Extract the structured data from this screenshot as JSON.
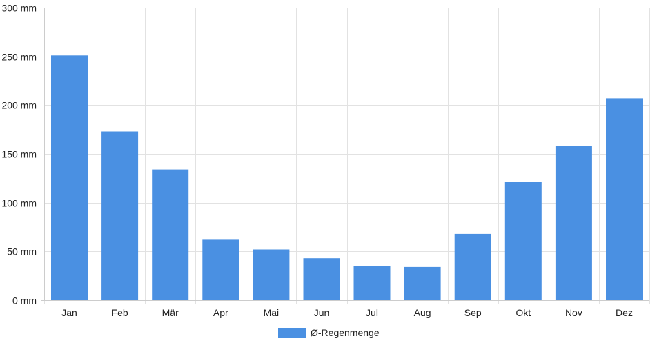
{
  "chart_data": {
    "type": "bar",
    "categories": [
      "Jan",
      "Feb",
      "Mär",
      "Apr",
      "Mai",
      "Jun",
      "Jul",
      "Aug",
      "Sep",
      "Okt",
      "Nov",
      "Dez"
    ],
    "series": [
      {
        "name": "Ø-Regenmenge",
        "color": "#4a90e2",
        "values": [
          251,
          173,
          134,
          62,
          52,
          43,
          35,
          34,
          68,
          121,
          158,
          207
        ]
      }
    ],
    "y_ticks": [
      "0 mm",
      "50 mm",
      "100 mm",
      "150 mm",
      "200 mm",
      "250 mm",
      "300 mm"
    ],
    "ylim": [
      0,
      300
    ],
    "y_unit": "mm",
    "grid": true,
    "legend_position": "bottom-center"
  }
}
